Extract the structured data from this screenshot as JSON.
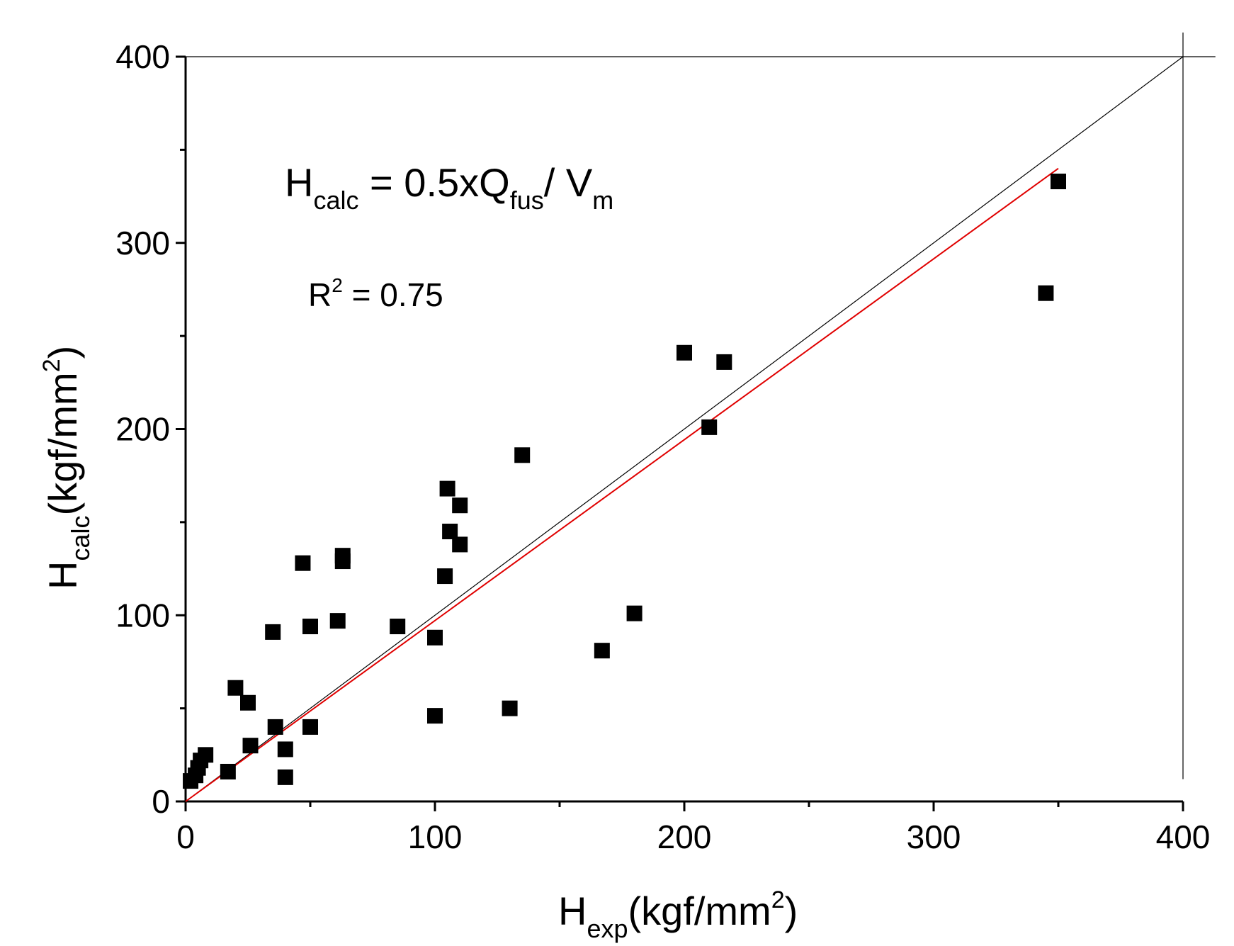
{
  "chart_data": {
    "type": "scatter",
    "xlabel": {
      "main": "H",
      "sub": "exp",
      "unit_open": "(kgf/mm",
      "unit_sup": "2",
      "unit_close": ")"
    },
    "ylabel": {
      "main": "H",
      "sub": "calc",
      "unit_open": "(kgf/mm",
      "unit_sup": "2",
      "unit_close": ")"
    },
    "xlim": [
      0,
      400
    ],
    "ylim": [
      0,
      400
    ],
    "x_ticks": [
      0,
      100,
      200,
      300,
      400
    ],
    "y_ticks": [
      0,
      100,
      200,
      300,
      400
    ],
    "x_tick_labels": [
      "0",
      "100",
      "200",
      "300",
      "400"
    ],
    "y_tick_labels": [
      "0",
      "100",
      "200",
      "300",
      "400"
    ],
    "grid": false,
    "annotations": {
      "formula": {
        "h": "H",
        "h_sub": "calc",
        "eq": " = 0.5xQ",
        "q_sub": "fus",
        "slash": "/ V",
        "v_sub": "m"
      },
      "r2": {
        "r": "R",
        "sup": "2",
        "rest": " = 0.75"
      }
    },
    "series": [
      {
        "name": "data",
        "marker": "square",
        "color": "#000000",
        "points": [
          {
            "x": 2,
            "y": 11
          },
          {
            "x": 4,
            "y": 14
          },
          {
            "x": 5,
            "y": 18
          },
          {
            "x": 6,
            "y": 22
          },
          {
            "x": 8,
            "y": 25
          },
          {
            "x": 17,
            "y": 16
          },
          {
            "x": 20,
            "y": 61
          },
          {
            "x": 25,
            "y": 53
          },
          {
            "x": 26,
            "y": 30
          },
          {
            "x": 35,
            "y": 91
          },
          {
            "x": 36,
            "y": 40
          },
          {
            "x": 40,
            "y": 28
          },
          {
            "x": 40,
            "y": 13
          },
          {
            "x": 47,
            "y": 128
          },
          {
            "x": 50,
            "y": 94
          },
          {
            "x": 50,
            "y": 40
          },
          {
            "x": 61,
            "y": 97
          },
          {
            "x": 63,
            "y": 132
          },
          {
            "x": 63,
            "y": 129
          },
          {
            "x": 85,
            "y": 94
          },
          {
            "x": 100,
            "y": 88
          },
          {
            "x": 100,
            "y": 46
          },
          {
            "x": 104,
            "y": 121
          },
          {
            "x": 105,
            "y": 168
          },
          {
            "x": 106,
            "y": 145
          },
          {
            "x": 110,
            "y": 159
          },
          {
            "x": 110,
            "y": 138
          },
          {
            "x": 130,
            "y": 50
          },
          {
            "x": 135,
            "y": 186
          },
          {
            "x": 167,
            "y": 81
          },
          {
            "x": 180,
            "y": 101
          },
          {
            "x": 200,
            "y": 241
          },
          {
            "x": 210,
            "y": 201
          },
          {
            "x": 216,
            "y": 236
          },
          {
            "x": 345,
            "y": 273
          },
          {
            "x": 350,
            "y": 333
          }
        ]
      }
    ],
    "lines": [
      {
        "name": "identity",
        "color": "#000000",
        "x": [
          0,
          400
        ],
        "y": [
          0,
          400
        ]
      },
      {
        "name": "fit",
        "color": "#e00000",
        "x": [
          0,
          350
        ],
        "y": [
          0,
          340
        ]
      }
    ],
    "reference_lines": [
      {
        "name": "top-line",
        "axis": "y",
        "value": 400,
        "x_range": [
          0,
          413
        ]
      },
      {
        "name": "right-line",
        "axis": "x",
        "value": 400,
        "y_range": [
          12,
          413
        ]
      }
    ]
  }
}
